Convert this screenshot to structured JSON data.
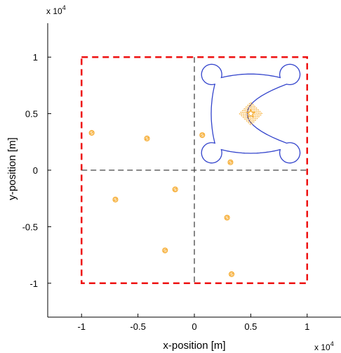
{
  "chart_data": {
    "type": "scatter",
    "title": "",
    "xlabel": "x-position [m]",
    "ylabel": "y-position [m]",
    "x_multiplier": {
      "base": "x 10",
      "exp": "4"
    },
    "y_multiplier": {
      "base": "x 10",
      "exp": "4"
    },
    "xlim": [
      -13000,
      13000
    ],
    "ylim": [
      -13000,
      13000
    ],
    "x_ticks": [
      {
        "value": -10000,
        "label": "-1"
      },
      {
        "value": -5000,
        "label": "-0.5"
      },
      {
        "value": 0,
        "label": "0"
      },
      {
        "value": 5000,
        "label": "0.5"
      },
      {
        "value": 10000,
        "label": "1"
      }
    ],
    "y_ticks": [
      {
        "value": -10000,
        "label": "-1"
      },
      {
        "value": -5000,
        "label": "-0.5"
      },
      {
        "value": 0,
        "label": "0"
      },
      {
        "value": 5000,
        "label": "0.5"
      },
      {
        "value": 10000,
        "label": "1"
      }
    ],
    "grid": false,
    "boundary_box": {
      "xmin": -10000,
      "xmax": 10000,
      "ymin": -10000,
      "ymax": 10000,
      "color": "#ee1111"
    },
    "quadrant_lines": {
      "x": 0,
      "y": 0,
      "color": "#444444"
    },
    "trajectory": {
      "center": [
        5000,
        5000
      ],
      "lobe_center_offset": 4900,
      "lobe_radius": 900,
      "color": "#3344cc"
    },
    "target_cluster": {
      "center": [
        5000,
        5000
      ],
      "half_diagonal": 1000,
      "color": "#f5a623"
    },
    "scatter_points": {
      "color": "#f5a623",
      "points": [
        [
          -9100,
          3300
        ],
        [
          -4200,
          2800
        ],
        [
          700,
          3100
        ],
        [
          3200,
          700
        ],
        [
          -1700,
          -1700
        ],
        [
          -7000,
          -2600
        ],
        [
          2900,
          -4200
        ],
        [
          -2600,
          -7100
        ],
        [
          3300,
          -9200
        ]
      ]
    }
  }
}
